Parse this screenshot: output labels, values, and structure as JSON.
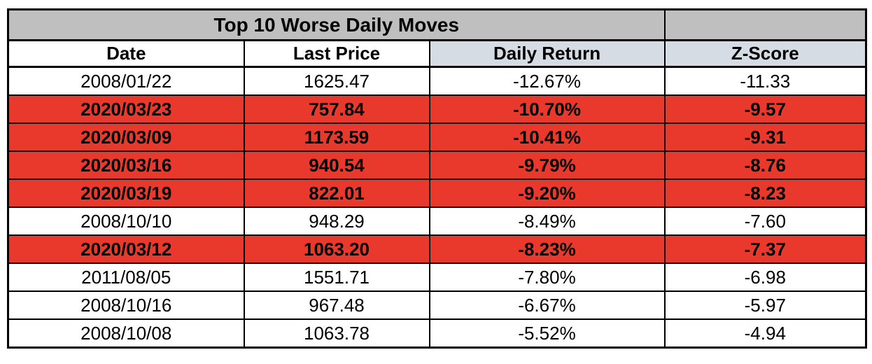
{
  "chart_data": {
    "type": "table",
    "title": "Top 10 Worse Daily Moves",
    "columns": [
      "Date",
      "Last Price",
      "Daily Return",
      "Z-Score"
    ],
    "rows": [
      [
        "2008/01/22",
        "1625.47",
        "-12.67%",
        "-11.33"
      ],
      [
        "2020/03/23",
        "757.84",
        "-10.70%",
        "-9.57"
      ],
      [
        "2020/03/09",
        "1173.59",
        "-10.41%",
        "-9.31"
      ],
      [
        "2020/03/16",
        "940.54",
        "-9.79%",
        "-8.76"
      ],
      [
        "2020/03/19",
        "822.01",
        "-9.20%",
        "-8.23"
      ],
      [
        "2008/10/10",
        "948.29",
        "-8.49%",
        "-7.60"
      ],
      [
        "2020/03/12",
        "1063.20",
        "-8.23%",
        "-7.37"
      ],
      [
        "2011/08/05",
        "1551.71",
        "-7.80%",
        "-6.98"
      ],
      [
        "2008/10/16",
        "967.48",
        "-6.67%",
        "-5.97"
      ],
      [
        "2008/10/08",
        "1063.78",
        "-5.52%",
        "-4.94"
      ]
    ],
    "highlighted_row_indices": [
      1,
      2,
      3,
      4,
      6
    ],
    "colors": {
      "title_bg": "#BFBFBF",
      "spacer_bg": "#BFBFBF",
      "header_plain_bg": "#FFFFFF",
      "header_accent_bg": "#D6DCE4",
      "highlight_bg": "#E8392C",
      "row_bg": "#FFFFFF",
      "border": "#000000",
      "text": "#000000"
    }
  }
}
